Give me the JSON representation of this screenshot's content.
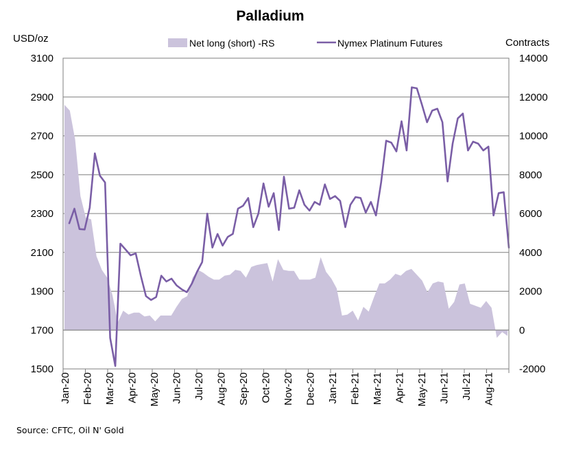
{
  "chart_data": {
    "type": "line",
    "title": "Palladium",
    "ylabel_left": "USD/oz",
    "ylabel_right": "Contracts",
    "source": "Source: CFTC, Oil N' Gold",
    "ylim_left": [
      1500,
      3100
    ],
    "yticks_left": [
      "3100",
      "2900",
      "2700",
      "2500",
      "2300",
      "2100",
      "1900",
      "1700",
      "1500"
    ],
    "ylim_right": [
      -2000,
      14000
    ],
    "yticks_right": [
      "14000",
      "12000",
      "10000",
      "8000",
      "6000",
      "4000",
      "2000",
      "0",
      "-2000"
    ],
    "x_tick_labels": [
      "Jan-20",
      "Feb-20",
      "Mar-20",
      "Apr-20",
      "May-20",
      "Jun-20",
      "Jul-20",
      "Aug-20",
      "Sep-20",
      "Oct-20",
      "Nov-20",
      "Dec-20",
      "Jan-21",
      "Feb-21",
      "Mar-21",
      "Apr-21",
      "May-21",
      "Jun-21",
      "Jul-21",
      "Aug-21"
    ],
    "grid": true,
    "legend_position": "top",
    "series": [
      {
        "name": "Net long (short) -RS",
        "type": "area",
        "axis": "right",
        "color": "#cbc3dc",
        "values": [
          11600,
          11300,
          9800,
          6900,
          5800,
          5700,
          3800,
          3100,
          2700,
          1800,
          400,
          1000,
          800,
          900,
          900,
          700,
          750,
          450,
          750,
          750,
          750,
          1200,
          1600,
          1750,
          2700,
          3100,
          2950,
          2750,
          2600,
          2600,
          2800,
          2850,
          3100,
          3050,
          2700,
          3250,
          3350,
          3400,
          3450,
          2500,
          3650,
          3100,
          3050,
          3050,
          2600,
          2600,
          2600,
          2700,
          3750,
          3000,
          2650,
          2150,
          750,
          800,
          1000,
          500,
          1200,
          950,
          1700,
          2400,
          2400,
          2600,
          2900,
          2800,
          3050,
          3150,
          2850,
          2550,
          1950,
          2400,
          2500,
          2450,
          1100,
          1450,
          2350,
          2400,
          1350,
          1250,
          1150,
          1500,
          1150,
          -400,
          -100,
          -300
        ]
      },
      {
        "name": "Nymex Platinum Futures",
        "type": "line",
        "axis": "left",
        "color": "#7a5ea6",
        "values": [
          2250,
          2325,
          2220,
          2218,
          2330,
          2610,
          2495,
          2460,
          1660,
          1515,
          2145,
          2115,
          2085,
          2095,
          1980,
          1875,
          1855,
          1870,
          1980,
          1950,
          1965,
          1930,
          1910,
          1895,
          1940,
          2000,
          2050,
          2300,
          2125,
          2195,
          2135,
          2180,
          2195,
          2325,
          2340,
          2380,
          2230,
          2300,
          2455,
          2335,
          2405,
          2215,
          2490,
          2325,
          2330,
          2420,
          2345,
          2315,
          2360,
          2345,
          2450,
          2375,
          2390,
          2365,
          2230,
          2345,
          2385,
          2380,
          2305,
          2360,
          2290,
          2460,
          2675,
          2665,
          2620,
          2775,
          2625,
          2950,
          2945,
          2860,
          2770,
          2830,
          2840,
          2770,
          2465,
          2660,
          2790,
          2815,
          2625,
          2670,
          2660,
          2625,
          2645,
          2290,
          2405,
          2410,
          2125
        ]
      }
    ]
  }
}
